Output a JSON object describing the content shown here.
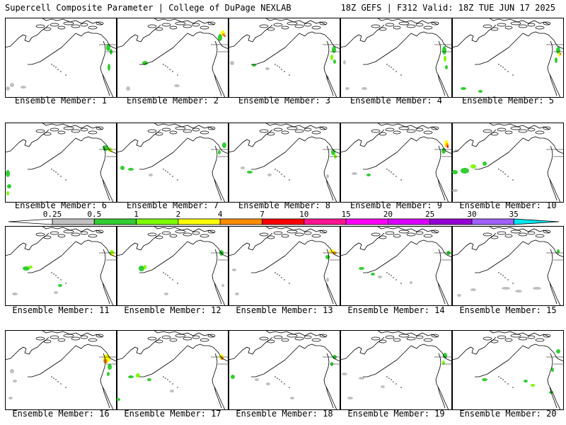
{
  "header": {
    "left": "Supercell Composite Parameter | College of DuPage NEXLAB",
    "right": "18Z GEFS | F312 Valid: 18Z TUE JUN 17 2025"
  },
  "member_label": "Ensemble Member:",
  "members": [
    "1",
    "2",
    "3",
    "4",
    "5",
    "6",
    "7",
    "8",
    "9",
    "10",
    "11",
    "12",
    "13",
    "14",
    "15",
    "16",
    "17",
    "18",
    "19",
    "20"
  ],
  "colorbar": {
    "levels": [
      "0.25",
      "0.5",
      "1",
      "2",
      "4",
      "7",
      "10",
      "15",
      "20",
      "25",
      "30",
      "35"
    ],
    "colors": [
      "#c0c0c0",
      "#32cd32",
      "#7cfc00",
      "#ffff00",
      "#ff8c00",
      "#ff0000",
      "#ff1493",
      "#ff00ff",
      "#da00ff",
      "#9400d3",
      "#a060ff",
      "#00e5ee"
    ]
  }
}
